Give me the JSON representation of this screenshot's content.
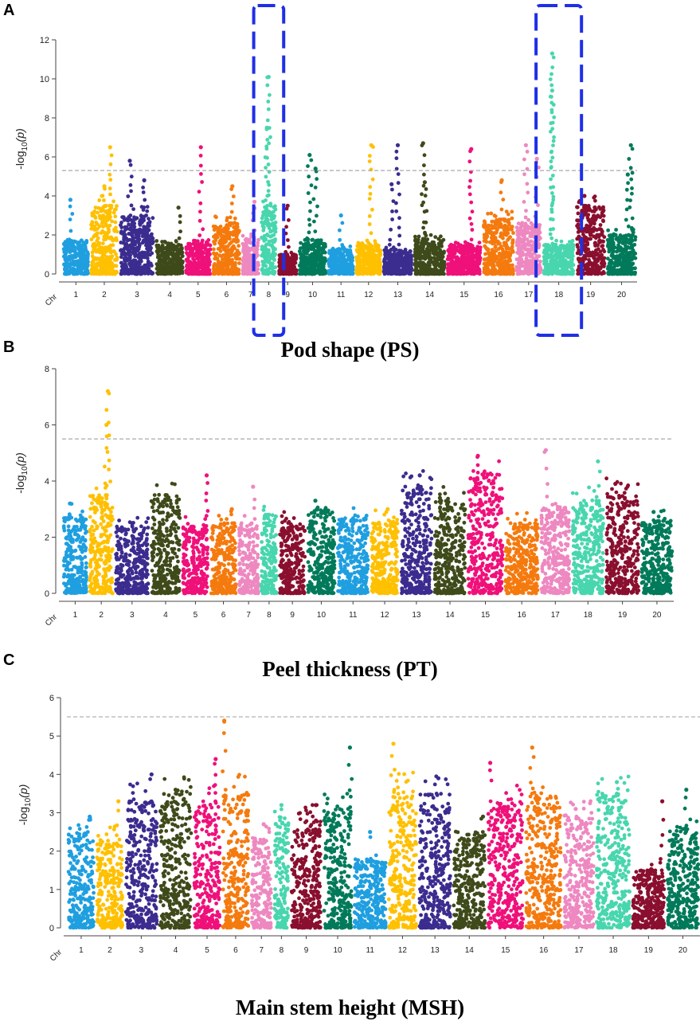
{
  "chart_data": [
    {
      "type": "scatter",
      "panel_label": "A",
      "title": "Pod shape (PS)",
      "ylabel_text": "-log",
      "ylabel_sub": "10",
      "ylabel_var": "(p)",
      "xlabel_prefix": "Chr",
      "ylim": [
        0,
        12
      ],
      "yticks": [
        0,
        2,
        4,
        6,
        8,
        10,
        12
      ],
      "threshold": 5.3,
      "chromosomes": [
        "1",
        "2",
        "3",
        "4",
        "5",
        "6",
        "7",
        "8",
        "9",
        "10",
        "11",
        "12",
        "13",
        "14",
        "15",
        "16",
        "17",
        "18",
        "19",
        "20"
      ],
      "widths": [
        1.6,
        1.7,
        2.1,
        1.7,
        1.6,
        1.7,
        1.1,
        1.0,
        1.2,
        1.7,
        1.6,
        1.6,
        1.8,
        1.9,
        2.1,
        1.9,
        1.6,
        1.9,
        1.8,
        1.8
      ],
      "bg_max": [
        1.7,
        3.5,
        3.0,
        1.5,
        1.6,
        2.6,
        1.8,
        3.5,
        1.0,
        1.6,
        1.3,
        1.5,
        1.2,
        1.8,
        1.5,
        2.8,
        2.5,
        1.5,
        3.5,
        2.0
      ],
      "peaks": [
        {
          "chr": "1",
          "pos": 0.3,
          "value": 3.8
        },
        {
          "chr": "2",
          "pos": 0.7,
          "value": 6.5
        },
        {
          "chr": "2",
          "pos": 0.5,
          "value": 4.5
        },
        {
          "chr": "3",
          "pos": 0.3,
          "value": 5.8
        },
        {
          "chr": "3",
          "pos": 0.7,
          "value": 4.8
        },
        {
          "chr": "4",
          "pos": 0.8,
          "value": 3.4
        },
        {
          "chr": "5",
          "pos": 0.6,
          "value": 6.5
        },
        {
          "chr": "6",
          "pos": 0.7,
          "value": 4.5
        },
        {
          "chr": "7",
          "pos": 0.7,
          "value": 3.7
        },
        {
          "chr": "8",
          "pos": 0.5,
          "value": 10.1
        },
        {
          "chr": "8",
          "pos": 0.4,
          "value": 7.5
        },
        {
          "chr": "9",
          "pos": 0.5,
          "value": 3.5
        },
        {
          "chr": "10",
          "pos": 0.4,
          "value": 6.1
        },
        {
          "chr": "10",
          "pos": 0.6,
          "value": 5.4
        },
        {
          "chr": "11",
          "pos": 0.5,
          "value": 3.0
        },
        {
          "chr": "12",
          "pos": 0.6,
          "value": 6.6
        },
        {
          "chr": "13",
          "pos": 0.5,
          "value": 6.6
        },
        {
          "chr": "13",
          "pos": 0.3,
          "value": 4.6
        },
        {
          "chr": "14",
          "pos": 0.3,
          "value": 6.7
        },
        {
          "chr": "14",
          "pos": 0.35,
          "value": 4.7
        },
        {
          "chr": "15",
          "pos": 0.7,
          "value": 6.4
        },
        {
          "chr": "16",
          "pos": 0.6,
          "value": 4.8
        },
        {
          "chr": "17",
          "pos": 0.4,
          "value": 6.6
        },
        {
          "chr": "17",
          "pos": 0.8,
          "value": 5.9
        },
        {
          "chr": "18",
          "pos": 0.3,
          "value": 11.3
        },
        {
          "chr": "18",
          "pos": 0.3,
          "value": 9.4
        },
        {
          "chr": "19",
          "pos": 0.3,
          "value": 4.0
        },
        {
          "chr": "20",
          "pos": 0.8,
          "value": 6.6
        },
        {
          "chr": "20",
          "pos": 0.7,
          "value": 5.1
        }
      ],
      "highlight_chromosomes": [
        "8",
        "18"
      ]
    },
    {
      "type": "scatter",
      "panel_label": "B",
      "title": "Peel thickness (PT)",
      "ylabel_text": "-log",
      "ylabel_sub": "10",
      "ylabel_var": "(p)",
      "xlabel_prefix": "Chr",
      "ylim": [
        0,
        8
      ],
      "yticks": [
        0,
        2,
        4,
        6,
        8
      ],
      "threshold": 5.5,
      "chromosomes": [
        "1",
        "2",
        "3",
        "4",
        "5",
        "6",
        "7",
        "8",
        "9",
        "10",
        "11",
        "12",
        "13",
        "14",
        "15",
        "16",
        "17",
        "18",
        "19",
        "20"
      ],
      "widths": [
        1.4,
        1.4,
        1.9,
        1.7,
        1.5,
        1.5,
        1.2,
        1.0,
        1.5,
        1.6,
        1.8,
        1.6,
        1.8,
        1.8,
        2.0,
        1.9,
        1.7,
        1.8,
        1.9,
        1.8
      ],
      "bg_max": [
        2.7,
        3.5,
        2.4,
        3.5,
        2.4,
        2.5,
        2.5,
        2.8,
        2.7,
        3.0,
        2.7,
        2.6,
        3.8,
        3.3,
        4.3,
        2.5,
        3.0,
        3.3,
        3.6,
        2.6
      ],
      "peaks": [
        {
          "chr": "1",
          "pos": 0.3,
          "value": 3.2
        },
        {
          "chr": "2",
          "pos": 0.75,
          "value": 7.2
        },
        {
          "chr": "2",
          "pos": 0.7,
          "value": 6.0
        },
        {
          "chr": "3",
          "pos": 0.5,
          "value": 2.5
        },
        {
          "chr": "4",
          "pos": 0.5,
          "value": 3.5
        },
        {
          "chr": "5",
          "pos": 0.9,
          "value": 4.2
        },
        {
          "chr": "6",
          "pos": 0.8,
          "value": 3.0
        },
        {
          "chr": "7",
          "pos": 0.7,
          "value": 3.8
        },
        {
          "chr": "8",
          "pos": 0.5,
          "value": 2.8
        },
        {
          "chr": "10",
          "pos": 0.3,
          "value": 3.3
        },
        {
          "chr": "12",
          "pos": 0.6,
          "value": 3.0
        },
        {
          "chr": "13",
          "pos": 0.6,
          "value": 4.2
        },
        {
          "chr": "14",
          "pos": 0.2,
          "value": 3.4
        },
        {
          "chr": "15",
          "pos": 0.3,
          "value": 4.9
        },
        {
          "chr": "17",
          "pos": 0.2,
          "value": 5.1
        },
        {
          "chr": "18",
          "pos": 0.8,
          "value": 4.7
        },
        {
          "chr": "19",
          "pos": 0.3,
          "value": 3.9
        },
        {
          "chr": "20",
          "pos": 0.4,
          "value": 2.9
        }
      ],
      "highlight_chromosomes": []
    },
    {
      "type": "scatter",
      "panel_label": "C",
      "title": "Main stem height (MSH)",
      "ylabel_text": "-log",
      "ylabel_sub": "10",
      "ylabel_var": "(p)",
      "xlabel_prefix": "Chr",
      "ylim": [
        0,
        6
      ],
      "yticks": [
        0,
        1,
        2,
        3,
        4,
        5,
        6
      ],
      "threshold": 5.5,
      "chromosomes": [
        "1",
        "2",
        "3",
        "4",
        "5",
        "6",
        "7",
        "8",
        "9",
        "10",
        "11",
        "12",
        "13",
        "14",
        "15",
        "16",
        "17",
        "18",
        "19",
        "20"
      ],
      "widths": [
        1.5,
        1.5,
        1.8,
        1.8,
        1.5,
        1.5,
        1.2,
        0.9,
        1.7,
        1.6,
        1.8,
        1.6,
        1.8,
        1.8,
        2.0,
        2.0,
        1.7,
        1.9,
        1.8,
        1.8
      ],
      "bg_max": [
        2.5,
        2.3,
        3.3,
        3.5,
        3.3,
        3.6,
        2.3,
        2.8,
        2.8,
        3.1,
        1.8,
        3.6,
        3.5,
        2.5,
        3.3,
        3.5,
        2.9,
        3.5,
        1.5,
        2.6
      ],
      "peaks": [
        {
          "chr": "1",
          "pos": 0.8,
          "value": 2.9
        },
        {
          "chr": "2",
          "pos": 0.8,
          "value": 3.3
        },
        {
          "chr": "3",
          "pos": 0.8,
          "value": 4.0
        },
        {
          "chr": "4",
          "pos": 0.5,
          "value": 3.6
        },
        {
          "chr": "5",
          "pos": 0.8,
          "value": 4.4
        },
        {
          "chr": "6",
          "pos": 0.1,
          "value": 5.4
        },
        {
          "chr": "7",
          "pos": 0.6,
          "value": 2.7
        },
        {
          "chr": "8",
          "pos": 0.5,
          "value": 3.2
        },
        {
          "chr": "9",
          "pos": 0.8,
          "value": 3.2
        },
        {
          "chr": "10",
          "pos": 0.9,
          "value": 4.7
        },
        {
          "chr": "11",
          "pos": 0.5,
          "value": 2.5
        },
        {
          "chr": "12",
          "pos": 0.2,
          "value": 4.8
        },
        {
          "chr": "13",
          "pos": 0.6,
          "value": 3.9
        },
        {
          "chr": "14",
          "pos": 0.9,
          "value": 2.9
        },
        {
          "chr": "15",
          "pos": 0.1,
          "value": 4.3
        },
        {
          "chr": "16",
          "pos": 0.2,
          "value": 4.7
        },
        {
          "chr": "17",
          "pos": 0.4,
          "value": 3.1
        },
        {
          "chr": "18",
          "pos": 0.6,
          "value": 3.8
        },
        {
          "chr": "19",
          "pos": 0.9,
          "value": 3.3
        },
        {
          "chr": "20",
          "pos": 0.6,
          "value": 3.6
        }
      ],
      "highlight_chromosomes": []
    }
  ],
  "colors": [
    "#1f9fe0",
    "#ffc000",
    "#3b2c8f",
    "#3e4a1a",
    "#f0107a",
    "#f57a0e",
    "#ee88c0",
    "#48d6ae",
    "#8a0f2e",
    "#007a5a"
  ],
  "threshold_color": "#aaaaaa",
  "highlight_color": "#1f2fe6"
}
